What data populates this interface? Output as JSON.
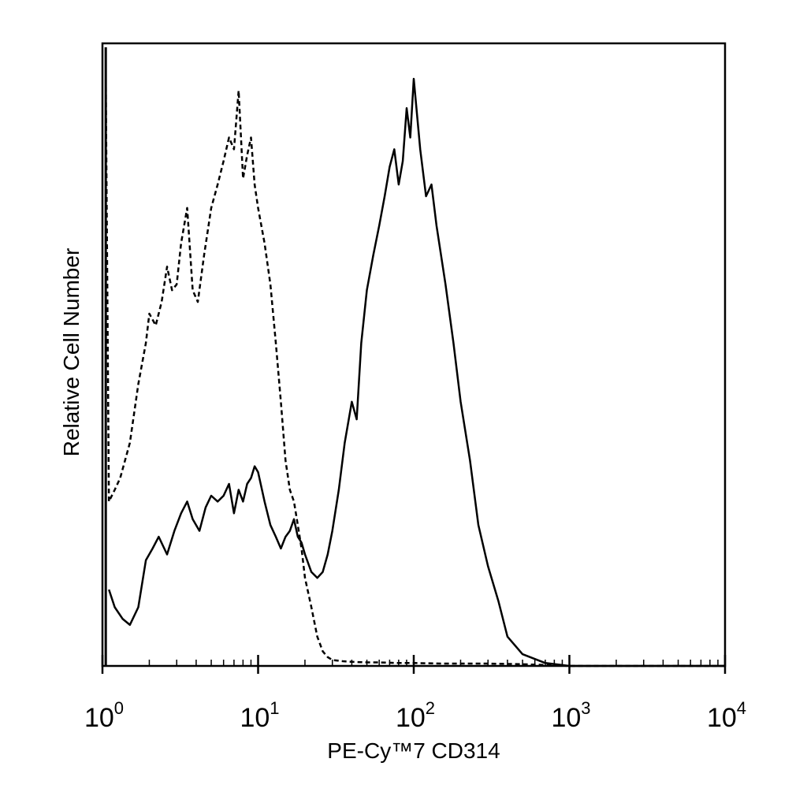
{
  "chart_data": {
    "type": "line",
    "title": "",
    "xlabel": "PE-Cy™7 CD314",
    "ylabel": "Relative Cell Number",
    "x_scale": "log",
    "xlim": [
      1,
      10000
    ],
    "ylim": [
      0,
      1
    ],
    "grid": false,
    "legend": "none",
    "x_ticks": [
      {
        "base": "10",
        "exp": "0",
        "value": 1
      },
      {
        "base": "10",
        "exp": "1",
        "value": 10
      },
      {
        "base": "10",
        "exp": "2",
        "value": 100
      },
      {
        "base": "10",
        "exp": "3",
        "value": 1000
      },
      {
        "base": "10",
        "exp": "4",
        "value": 10000
      }
    ],
    "series": [
      {
        "style": "dashed",
        "color": "#000000",
        "x": [
          1.05,
          1.1,
          1.2,
          1.3,
          1.5,
          1.7,
          1.9,
          2.0,
          2.2,
          2.4,
          2.6,
          2.8,
          3.0,
          3.2,
          3.5,
          3.8,
          4.1,
          4.5,
          5.0,
          5.5,
          6.0,
          6.5,
          7.0,
          7.5,
          8.0,
          8.5,
          9.0,
          9.5,
          10.0,
          11,
          12,
          13,
          14,
          15,
          16,
          17,
          18,
          19,
          20,
          22,
          24,
          26,
          28,
          30,
          35,
          40,
          50,
          60,
          80,
          100,
          150,
          200,
          300,
          500,
          1000,
          3000,
          10000
        ],
        "y": [
          1.0,
          0.28,
          0.3,
          0.32,
          0.38,
          0.48,
          0.55,
          0.6,
          0.58,
          0.62,
          0.68,
          0.64,
          0.65,
          0.72,
          0.78,
          0.64,
          0.62,
          0.7,
          0.78,
          0.82,
          0.86,
          0.9,
          0.88,
          0.98,
          0.83,
          0.87,
          0.9,
          0.82,
          0.78,
          0.72,
          0.65,
          0.55,
          0.45,
          0.35,
          0.3,
          0.28,
          0.24,
          0.2,
          0.15,
          0.1,
          0.05,
          0.025,
          0.015,
          0.01,
          0.008,
          0.007,
          0.006,
          0.006,
          0.005,
          0.005,
          0.004,
          0.004,
          0.004,
          0.003,
          0.0,
          0.0,
          0.0
        ]
      },
      {
        "style": "solid",
        "color": "#000000",
        "x": [
          1.1,
          1.2,
          1.35,
          1.5,
          1.7,
          1.9,
          2.1,
          2.3,
          2.6,
          2.9,
          3.2,
          3.5,
          3.8,
          4.2,
          4.6,
          5.0,
          5.5,
          6.0,
          6.5,
          7.0,
          7.5,
          8.0,
          8.5,
          9.0,
          9.5,
          10.0,
          11,
          12,
          13,
          14,
          15,
          16,
          17,
          18,
          19,
          20,
          22,
          24,
          26,
          28,
          30,
          33,
          36,
          40,
          43,
          46,
          50,
          55,
          60,
          65,
          70,
          75,
          80,
          85,
          90,
          95,
          100,
          110,
          120,
          130,
          140,
          160,
          180,
          200,
          230,
          260,
          300,
          350,
          400,
          500,
          700,
          1000,
          2000,
          5000,
          10000
        ],
        "y": [
          0.13,
          0.1,
          0.08,
          0.07,
          0.1,
          0.18,
          0.2,
          0.22,
          0.19,
          0.23,
          0.26,
          0.28,
          0.25,
          0.23,
          0.27,
          0.29,
          0.28,
          0.29,
          0.31,
          0.26,
          0.3,
          0.28,
          0.31,
          0.32,
          0.34,
          0.33,
          0.28,
          0.24,
          0.22,
          0.2,
          0.22,
          0.23,
          0.25,
          0.22,
          0.21,
          0.19,
          0.16,
          0.15,
          0.16,
          0.19,
          0.23,
          0.3,
          0.38,
          0.45,
          0.42,
          0.55,
          0.64,
          0.7,
          0.75,
          0.8,
          0.85,
          0.88,
          0.82,
          0.86,
          0.95,
          0.9,
          1.0,
          0.88,
          0.8,
          0.82,
          0.75,
          0.65,
          0.55,
          0.45,
          0.35,
          0.24,
          0.17,
          0.11,
          0.05,
          0.02,
          0.005,
          0.0,
          0.0,
          0.0,
          0.0
        ]
      }
    ]
  }
}
